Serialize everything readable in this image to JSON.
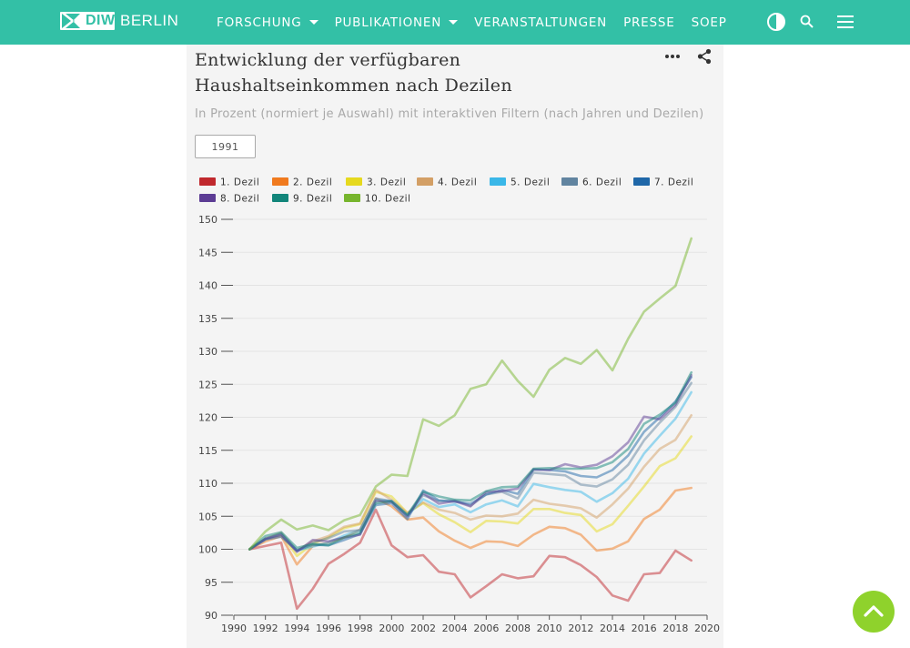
{
  "header": {
    "logo_text": "DIW",
    "logo_city": "BERLIN",
    "nav": [
      {
        "label": "FORSCHUNG",
        "dropdown": true
      },
      {
        "label": "PUBLIKATIONEN",
        "dropdown": true
      },
      {
        "label": "VERANSTALTUNGEN",
        "dropdown": false
      },
      {
        "label": "PRESSE",
        "dropdown": false
      },
      {
        "label": "SOEP",
        "dropdown": false
      }
    ],
    "icons": [
      "contrast-icon",
      "search-icon",
      "menu-icon"
    ],
    "bar_color": "#33c0a6"
  },
  "page": {
    "title": "Entwicklung der verfügbaren Haushaltseinkommen nach Dezilen",
    "subtitle": "In Prozent (normiert je Auswahl) mit interaktiven Filtern (nach Jahren und Dezilen)",
    "year_filter": "1991",
    "fab_icon": "chevron-up-icon",
    "fab_color": "#8fd22c"
  },
  "chart_data": {
    "type": "line",
    "ylim": [
      90,
      150
    ],
    "xlim": [
      1990,
      2020
    ],
    "y_ticks": [
      90,
      95,
      100,
      105,
      110,
      115,
      120,
      125,
      130,
      135,
      140,
      145,
      150
    ],
    "x_ticks": [
      1990,
      1992,
      1994,
      1996,
      1998,
      2000,
      2002,
      2004,
      2006,
      2008,
      2010,
      2012,
      2014,
      2016,
      2018,
      2020
    ],
    "grid": true,
    "legend_position": "top",
    "x": [
      1991,
      1992,
      1993,
      1994,
      1995,
      1996,
      1997,
      1998,
      1999,
      2000,
      2001,
      2002,
      2003,
      2004,
      2005,
      2006,
      2007,
      2008,
      2009,
      2010,
      2011,
      2012,
      2013,
      2014,
      2015,
      2016,
      2017,
      2018,
      2019
    ],
    "series": [
      {
        "name": "1. Dezil",
        "color": "#c0282d",
        "values": [
          100,
          100.5,
          101,
          91,
          94,
          97.8,
          99.3,
          101,
          106,
          100.6,
          98.8,
          99.1,
          96.6,
          96.2,
          92.7,
          94.4,
          96.2,
          95.6,
          95.9,
          99,
          98.8,
          97.6,
          95.8,
          93,
          92.2,
          96.2,
          96.4,
          99.8,
          98.3
        ]
      },
      {
        "name": "2. Dezil",
        "color": "#f07a1e",
        "values": [
          100,
          101.2,
          102,
          97.7,
          100.5,
          101,
          101.8,
          103,
          107.7,
          106.5,
          104.5,
          104.8,
          102.7,
          101.3,
          100.2,
          101.2,
          101.1,
          100.5,
          102.2,
          103.4,
          103.2,
          102.2,
          99.8,
          100.1,
          101.2,
          104.6,
          106,
          108.9,
          109.3
        ]
      },
      {
        "name": "3. Dezil",
        "color": "#e6d91e",
        "values": [
          100,
          101.6,
          102.3,
          99,
          100.8,
          101.8,
          103.2,
          103.8,
          108.7,
          108,
          105.5,
          107,
          105.3,
          104.1,
          102.6,
          104.3,
          104.2,
          103.9,
          106.1,
          106.1,
          105.5,
          105.2,
          102.7,
          103.8,
          106.6,
          109.5,
          112.6,
          113.8,
          117.1
        ]
      },
      {
        "name": "4. Dezil",
        "color": "#d39f65",
        "values": [
          100,
          101.6,
          102.5,
          99.8,
          101.2,
          102,
          103.4,
          103.9,
          109,
          107.5,
          105.5,
          107.1,
          106,
          105.5,
          104.5,
          105.1,
          105,
          105.4,
          107.5,
          106.9,
          106.6,
          106.2,
          104.8,
          106.8,
          109.2,
          112.5,
          115.2,
          116.6,
          120.3
        ]
      },
      {
        "name": "5. Dezil",
        "color": "#3ab7e8",
        "values": [
          100,
          101.6,
          102.3,
          99.8,
          100.4,
          101,
          102.1,
          102.9,
          107.5,
          107.3,
          105.1,
          107.6,
          106.4,
          106.8,
          105.6,
          106.8,
          107.4,
          106.5,
          109.9,
          109.4,
          109,
          108.7,
          107.2,
          108.5,
          110.7,
          114.5,
          117.2,
          119.8,
          123.8
        ]
      },
      {
        "name": "6. Dezil",
        "color": "#6184a0",
        "values": [
          100,
          101.5,
          102.4,
          99.8,
          101,
          101.7,
          102.7,
          102.9,
          107.7,
          107.3,
          105.2,
          108.2,
          107.3,
          107.4,
          106.6,
          108.3,
          108.7,
          107.7,
          111.6,
          111.4,
          111.2,
          109.8,
          109.5,
          110.6,
          112.8,
          116.5,
          119.2,
          121.6,
          125.2
        ]
      },
      {
        "name": "7. Dezil",
        "color": "#1f67a8",
        "values": [
          100,
          101.5,
          101.9,
          99.8,
          100.7,
          100.6,
          101.4,
          102.3,
          106.7,
          107,
          104.6,
          108.9,
          107.4,
          107.2,
          106.9,
          108.3,
          109,
          108.4,
          112.1,
          112,
          111.8,
          111.1,
          110.9,
          112,
          114.2,
          117.8,
          120,
          122.4,
          126.1
        ]
      },
      {
        "name": "8. Dezil",
        "color": "#5c3c94",
        "values": [
          100,
          101.6,
          102.2,
          99.6,
          101.4,
          101.2,
          101.8,
          102.2,
          107.3,
          107.2,
          105,
          108.5,
          106.9,
          107.3,
          106.5,
          108.7,
          108.8,
          109.2,
          112.1,
          112,
          112.9,
          112.4,
          112.8,
          114.1,
          116.2,
          120.1,
          119.7,
          121.9,
          126.4
        ]
      },
      {
        "name": "9. Dezil",
        "color": "#12857a",
        "values": [
          100,
          102,
          102.6,
          100.2,
          100.8,
          100.6,
          101.8,
          102.5,
          107,
          107.3,
          105.2,
          108.7,
          108,
          107.5,
          107.4,
          108.8,
          109.4,
          109.5,
          112.2,
          112.3,
          112.2,
          112.2,
          112.3,
          113.2,
          115.2,
          119,
          120.4,
          122.2,
          126.8
        ]
      },
      {
        "name": "10. Dezil",
        "color": "#77b52d",
        "values": [
          100,
          102.7,
          104.5,
          103,
          103.6,
          102.9,
          104.4,
          105.2,
          109.5,
          111.3,
          111.1,
          119.7,
          118.7,
          120.3,
          124.3,
          125,
          128.6,
          125.5,
          123.1,
          127.2,
          129,
          128.1,
          130.2,
          127.1,
          131.9,
          136,
          138,
          139.9,
          147.1
        ]
      }
    ]
  }
}
